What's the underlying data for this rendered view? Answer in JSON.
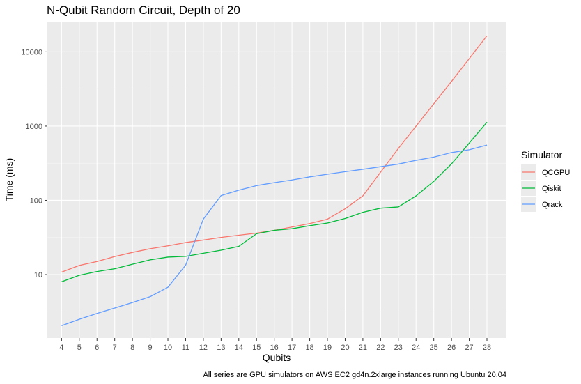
{
  "chart_data": {
    "type": "line",
    "title": "N-Qubit Random Circuit, Depth of 20",
    "xlabel": "Qubits",
    "ylabel": "Time (ms)",
    "caption": "All series are GPU simulators on AWS EC2 gd4n.2xlarge instances running Ubuntu 20.04",
    "y_scale": "log10",
    "ylim": [
      1.4,
      25000
    ],
    "xlim": [
      3.2,
      29.1
    ],
    "x": [
      4,
      5,
      6,
      7,
      8,
      9,
      10,
      11,
      12,
      13,
      14,
      15,
      16,
      17,
      18,
      19,
      20,
      21,
      22,
      23,
      24,
      25,
      26,
      27,
      28
    ],
    "x_tick_labels": [
      "4",
      "5",
      "6",
      "7",
      "8",
      "9",
      "10",
      "11",
      "12",
      "13",
      "14",
      "15",
      "16",
      "17",
      "18",
      "19",
      "20",
      "21",
      "22",
      "23",
      "24",
      "25",
      "26",
      "27",
      "28"
    ],
    "y_ticks": [
      10,
      100,
      1000,
      10000
    ],
    "y_tick_labels": [
      "10",
      "100",
      "1000",
      "10000"
    ],
    "grid": true,
    "legend": {
      "title": "Simulator",
      "position": "right"
    },
    "series": [
      {
        "name": "QCGPU",
        "color": "#f8766d",
        "values": [
          10.8,
          13.3,
          15.0,
          17.5,
          19.9,
          22.3,
          24.4,
          27.0,
          29.2,
          31.7,
          33.9,
          36.2,
          39.5,
          43.7,
          48.7,
          55.8,
          77.0,
          115,
          240,
          500,
          1000,
          2000,
          4000,
          8100,
          16500
        ]
      },
      {
        "name": "Qiskit",
        "color": "#00ba38",
        "values": [
          8.0,
          9.8,
          11.0,
          12.0,
          13.8,
          15.8,
          17.2,
          17.6,
          19.4,
          21.3,
          24.0,
          35.5,
          39.5,
          41.5,
          45.5,
          49.5,
          57.0,
          69.0,
          78.5,
          81.5,
          115,
          180,
          310,
          590,
          1130
        ]
      },
      {
        "name": "Qrack",
        "color": "#619cff",
        "values": [
          2.05,
          2.5,
          3.0,
          3.55,
          4.2,
          5.05,
          6.75,
          13.4,
          56,
          116,
          137,
          158,
          173,
          188,
          207,
          225,
          243,
          262,
          284,
          308,
          346,
          383,
          440,
          480,
          555
        ]
      }
    ]
  }
}
